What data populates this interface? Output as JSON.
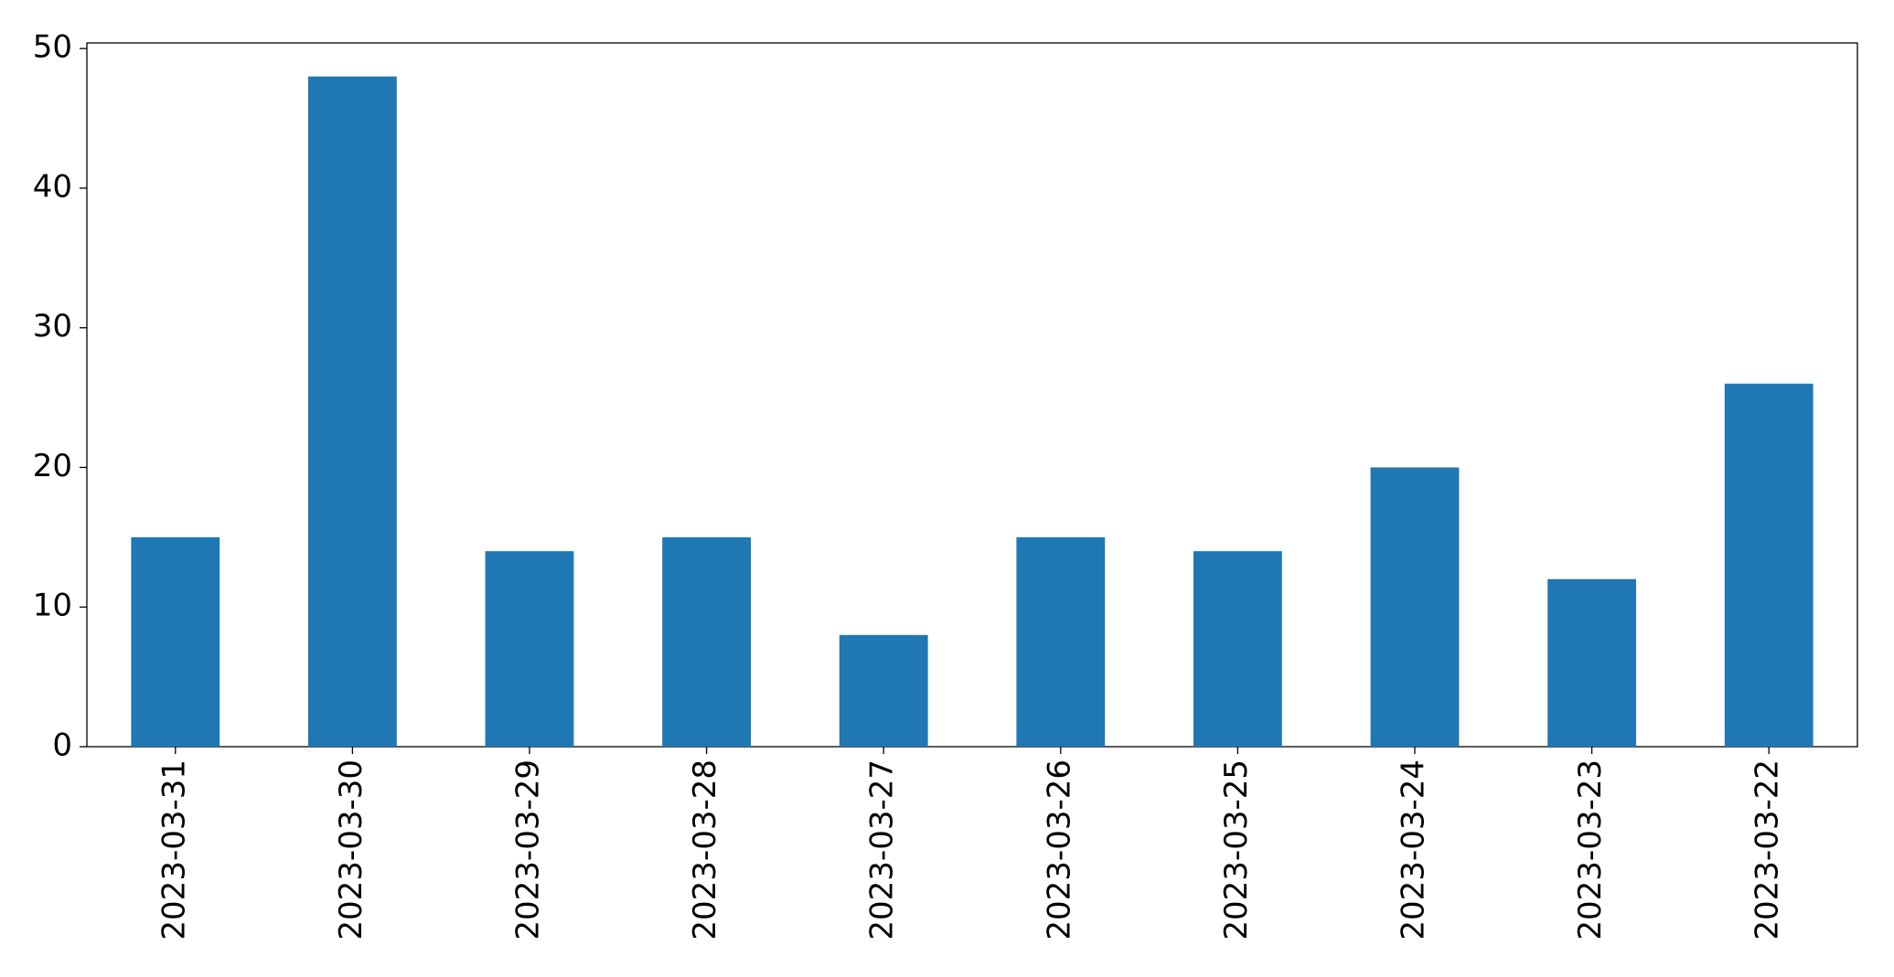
{
  "chart_data": {
    "type": "bar",
    "categories": [
      "2023-03-31",
      "2023-03-30",
      "2023-03-29",
      "2023-03-28",
      "2023-03-27",
      "2023-03-26",
      "2023-03-25",
      "2023-03-24",
      "2023-03-23",
      "2023-03-22"
    ],
    "values": [
      15,
      48,
      14,
      15,
      8,
      15,
      14,
      20,
      12,
      26
    ],
    "color": "#1f77b4",
    "ylim": [
      0,
      50.4
    ],
    "yticks": [
      0,
      10,
      20,
      30,
      40,
      50
    ],
    "grid": false
  }
}
